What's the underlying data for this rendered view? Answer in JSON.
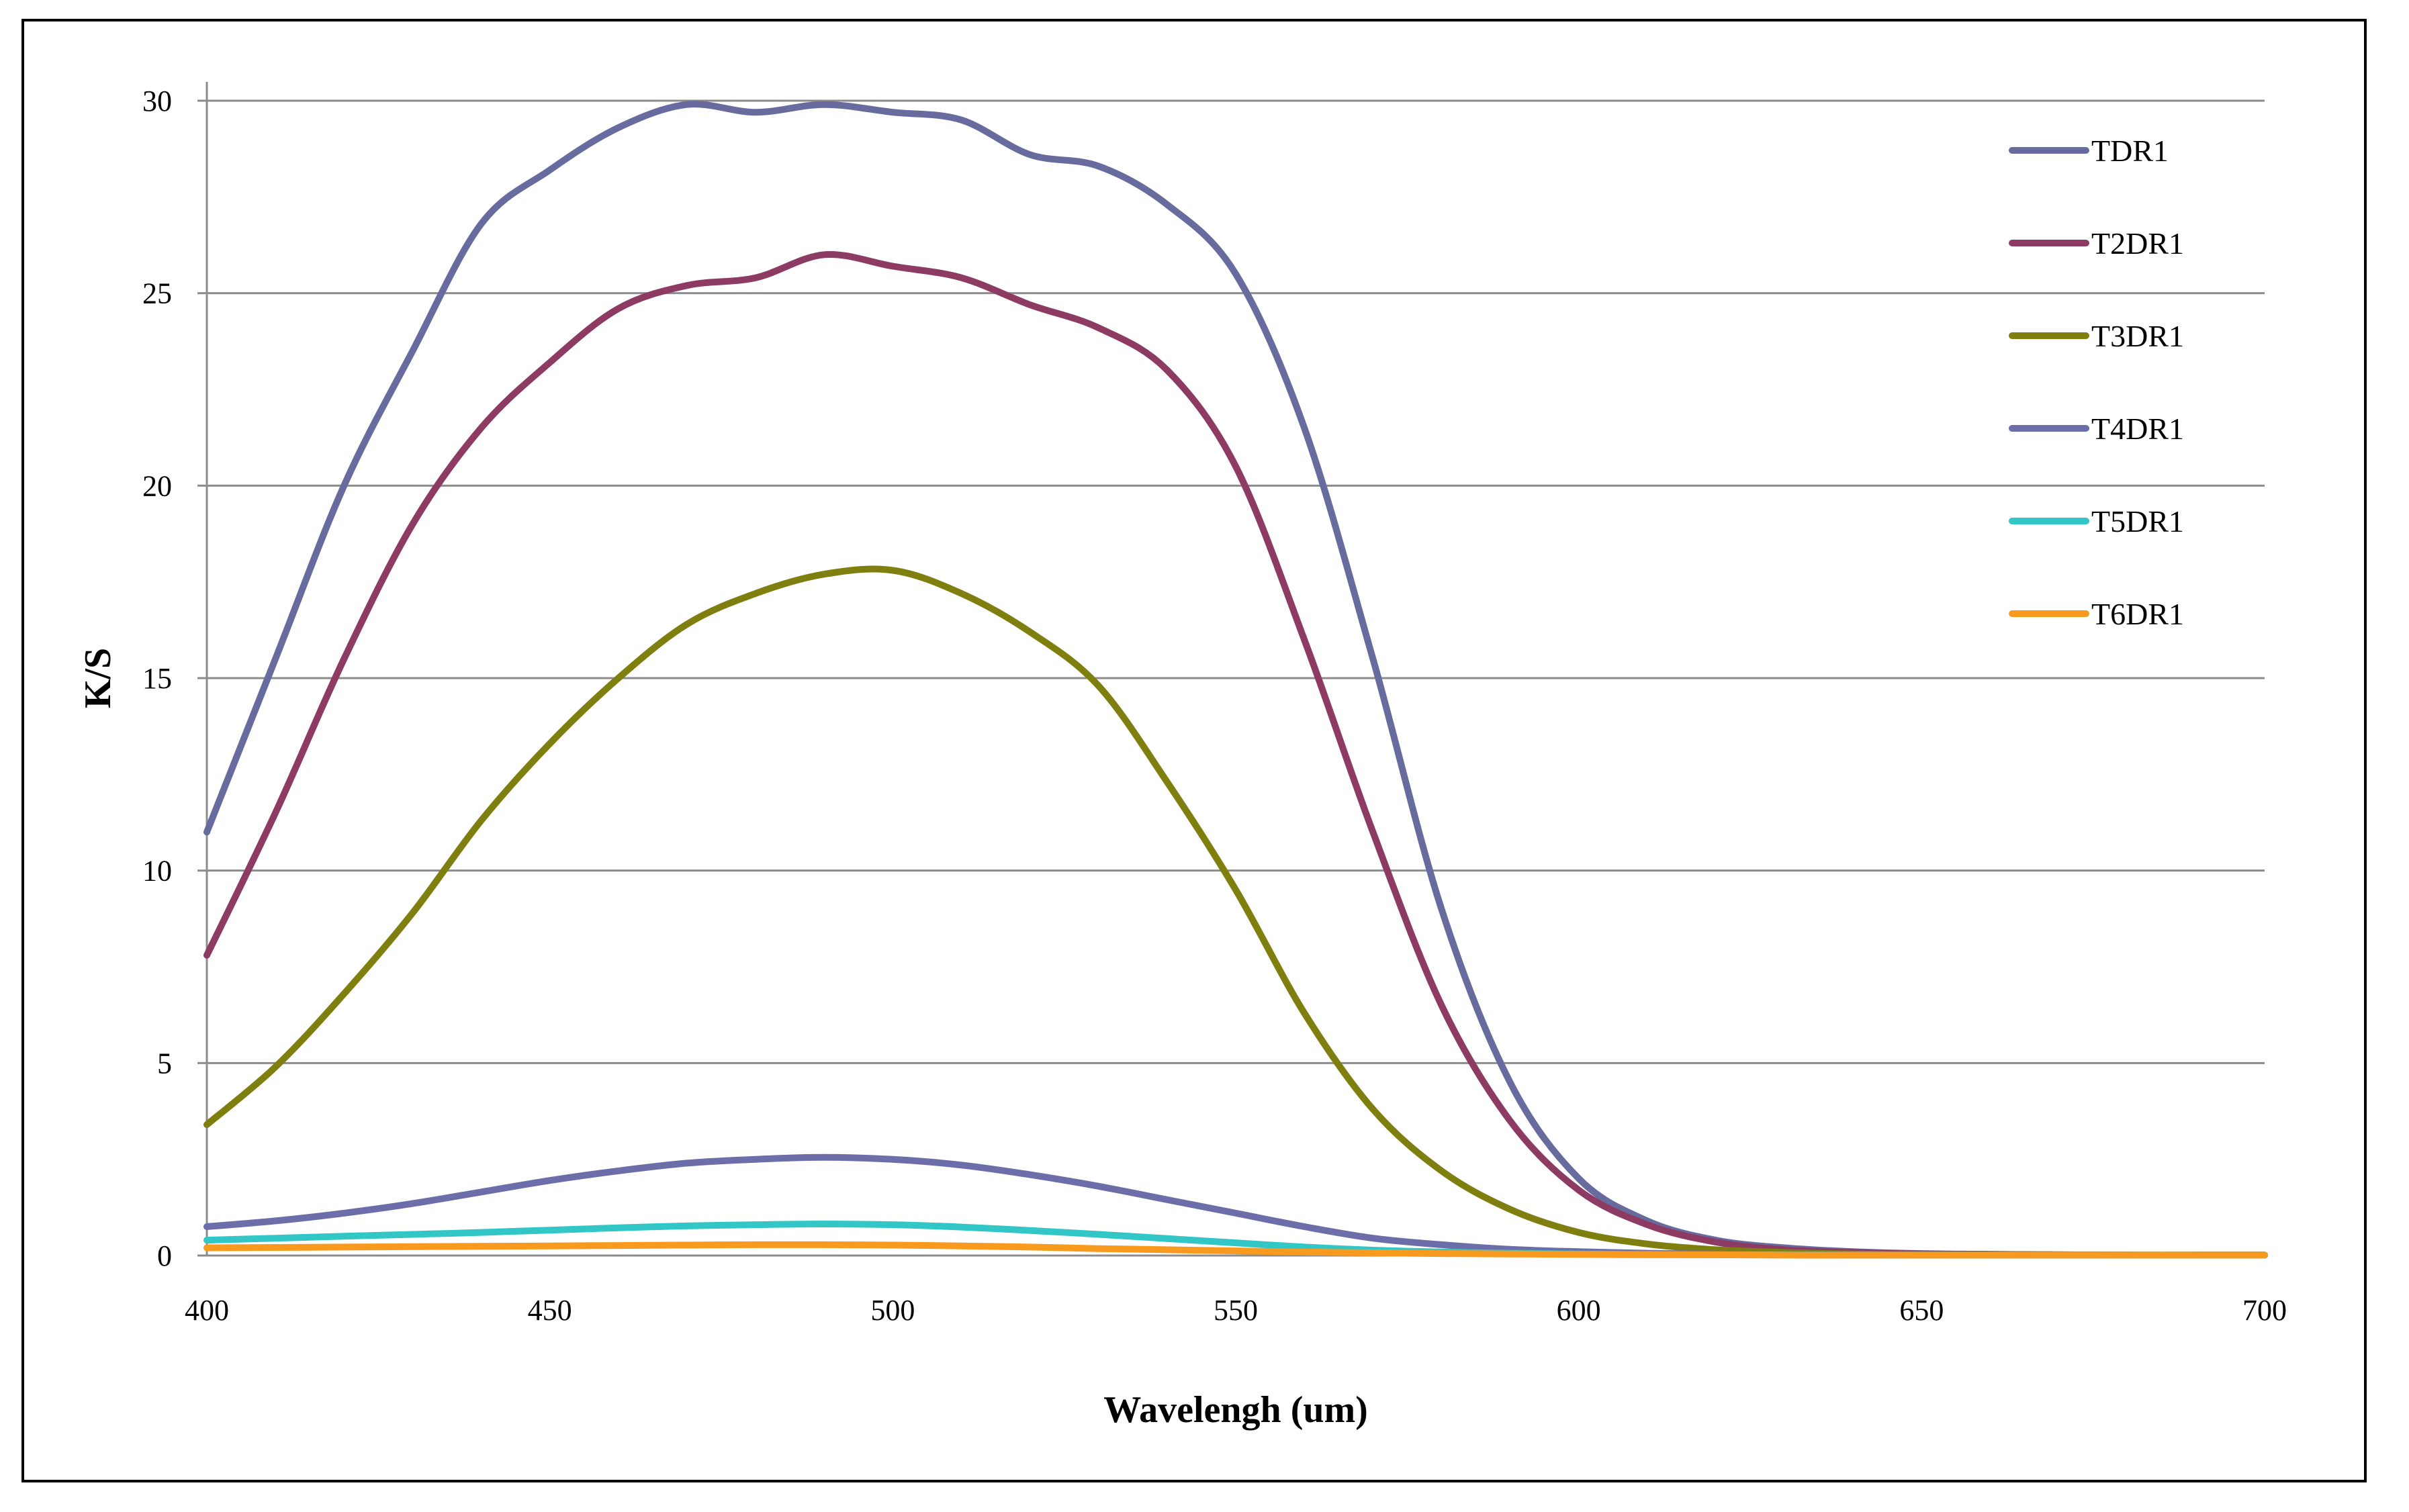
{
  "chart_data": {
    "type": "line",
    "title": "",
    "xlabel": "Wavelengh (um)",
    "ylabel": "K/S",
    "xlim": [
      400,
      700
    ],
    "ylim": [
      0,
      30
    ],
    "xticks": [
      400,
      450,
      500,
      550,
      600,
      650,
      700
    ],
    "yticks": [
      0,
      5,
      10,
      15,
      20,
      25,
      30
    ],
    "grid": "horizontal",
    "legend_position": "top-right",
    "series": [
      {
        "name": "TDR1",
        "color": "#686b9e",
        "x": [
          400,
          410,
          420,
          430,
          440,
          450,
          460,
          470,
          480,
          490,
          500,
          510,
          520,
          530,
          540,
          550,
          560,
          570,
          580,
          590,
          600,
          610,
          620,
          630,
          640,
          650,
          660,
          670,
          680,
          690,
          700
        ],
        "y": [
          11.0,
          15.5,
          20.0,
          23.5,
          26.8,
          28.2,
          29.3,
          29.9,
          29.7,
          29.9,
          29.7,
          29.5,
          28.6,
          28.3,
          27.3,
          25.5,
          21.5,
          15.5,
          9.0,
          4.5,
          2.0,
          0.9,
          0.4,
          0.2,
          0.1,
          0.05,
          0.03,
          0.02,
          0.01,
          0.01,
          0.01
        ]
      },
      {
        "name": "T2DR1",
        "color": "#8e3b63",
        "x": [
          400,
          410,
          420,
          430,
          440,
          450,
          460,
          470,
          480,
          490,
          500,
          510,
          520,
          530,
          540,
          550,
          560,
          570,
          580,
          590,
          600,
          610,
          620,
          630,
          640,
          650,
          660,
          670,
          680,
          690,
          700
        ],
        "y": [
          7.8,
          11.5,
          15.5,
          19.0,
          21.5,
          23.2,
          24.6,
          25.2,
          25.4,
          26.0,
          25.7,
          25.4,
          24.7,
          24.1,
          23.0,
          20.5,
          16.0,
          11.0,
          6.5,
          3.5,
          1.7,
          0.8,
          0.35,
          0.15,
          0.08,
          0.04,
          0.03,
          0.02,
          0.01,
          0.01,
          0.01
        ]
      },
      {
        "name": "T3DR1",
        "color": "#7f7f10",
        "x": [
          400,
          410,
          420,
          430,
          440,
          450,
          460,
          470,
          480,
          490,
          500,
          510,
          520,
          530,
          540,
          550,
          560,
          570,
          580,
          590,
          600,
          610,
          620,
          630,
          640,
          650,
          660,
          670,
          680,
          690,
          700
        ],
        "y": [
          3.4,
          4.9,
          6.8,
          8.9,
          11.3,
          13.3,
          15.0,
          16.4,
          17.2,
          17.7,
          17.8,
          17.2,
          16.2,
          14.8,
          12.3,
          9.5,
          6.3,
          3.8,
          2.2,
          1.2,
          0.6,
          0.3,
          0.15,
          0.08,
          0.04,
          0.02,
          0.01,
          0.01,
          0.01,
          0.01,
          0.01
        ]
      },
      {
        "name": "T4DR1",
        "color": "#6b6ea8",
        "x": [
          400,
          410,
          420,
          430,
          440,
          450,
          460,
          470,
          480,
          490,
          500,
          510,
          520,
          530,
          540,
          550,
          560,
          570,
          580,
          590,
          600,
          610,
          620,
          630,
          640,
          650,
          660,
          670,
          680,
          690,
          700
        ],
        "y": [
          0.75,
          0.9,
          1.1,
          1.35,
          1.65,
          1.95,
          2.2,
          2.4,
          2.5,
          2.55,
          2.5,
          2.35,
          2.1,
          1.8,
          1.45,
          1.1,
          0.75,
          0.45,
          0.28,
          0.16,
          0.1,
          0.06,
          0.04,
          0.03,
          0.02,
          0.02,
          0.01,
          0.01,
          0.01,
          0.01,
          0.01
        ]
      },
      {
        "name": "T5DR1",
        "color": "#33c6c6",
        "x": [
          400,
          410,
          420,
          430,
          440,
          450,
          460,
          470,
          480,
          490,
          500,
          510,
          520,
          530,
          540,
          550,
          560,
          570,
          580,
          590,
          600,
          610,
          620,
          630,
          640,
          650,
          660,
          670,
          680,
          690,
          700
        ],
        "y": [
          0.4,
          0.45,
          0.5,
          0.55,
          0.6,
          0.66,
          0.72,
          0.77,
          0.8,
          0.82,
          0.8,
          0.74,
          0.65,
          0.55,
          0.44,
          0.33,
          0.22,
          0.14,
          0.09,
          0.06,
          0.04,
          0.03,
          0.02,
          0.02,
          0.01,
          0.01,
          0.01,
          0.01,
          0.01,
          0.01,
          0.01
        ]
      },
      {
        "name": "T6DR1",
        "color": "#f79a1e",
        "x": [
          400,
          410,
          420,
          430,
          440,
          450,
          460,
          470,
          480,
          490,
          500,
          510,
          520,
          530,
          540,
          550,
          560,
          570,
          580,
          590,
          600,
          610,
          620,
          630,
          640,
          650,
          660,
          670,
          680,
          690,
          700
        ],
        "y": [
          0.2,
          0.21,
          0.22,
          0.23,
          0.24,
          0.25,
          0.26,
          0.27,
          0.28,
          0.28,
          0.27,
          0.25,
          0.22,
          0.18,
          0.15,
          0.12,
          0.09,
          0.07,
          0.05,
          0.04,
          0.03,
          0.02,
          0.02,
          0.01,
          0.01,
          0.01,
          0.01,
          0.01,
          0.01,
          0.01,
          0.01
        ]
      }
    ]
  }
}
